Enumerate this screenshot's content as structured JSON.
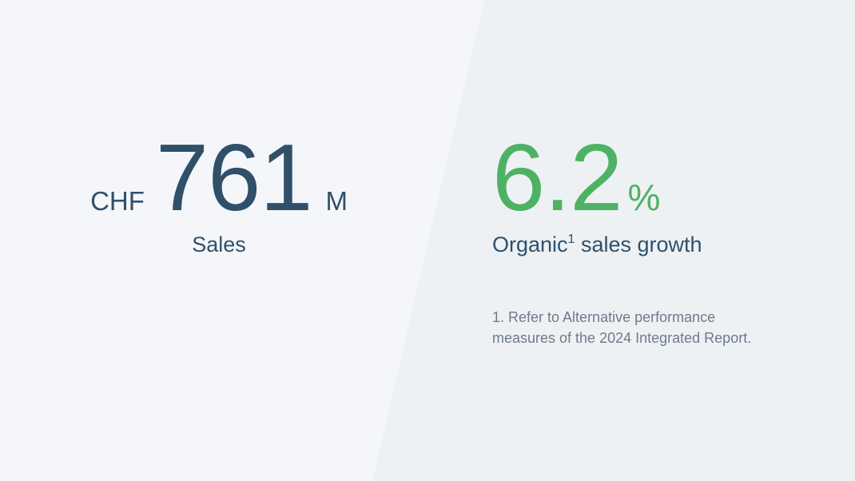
{
  "left_panel": {
    "currency": "CHF",
    "value": "761",
    "unit": "M",
    "label": "Sales"
  },
  "right_panel": {
    "value": "6.2",
    "unit": "%",
    "label_prefix": "Organic",
    "label_superscript": "1",
    "label_suffix": " sales growth",
    "footnote": "1. Refer to Alternative performance measures of the 2024 Integrated Report."
  },
  "colors": {
    "left_background": "#f5f6fa",
    "right_background": "#edf1f4",
    "primary_text": "#30506a",
    "accent_green": "#4eb264",
    "footnote_text": "#6e7b8b"
  }
}
